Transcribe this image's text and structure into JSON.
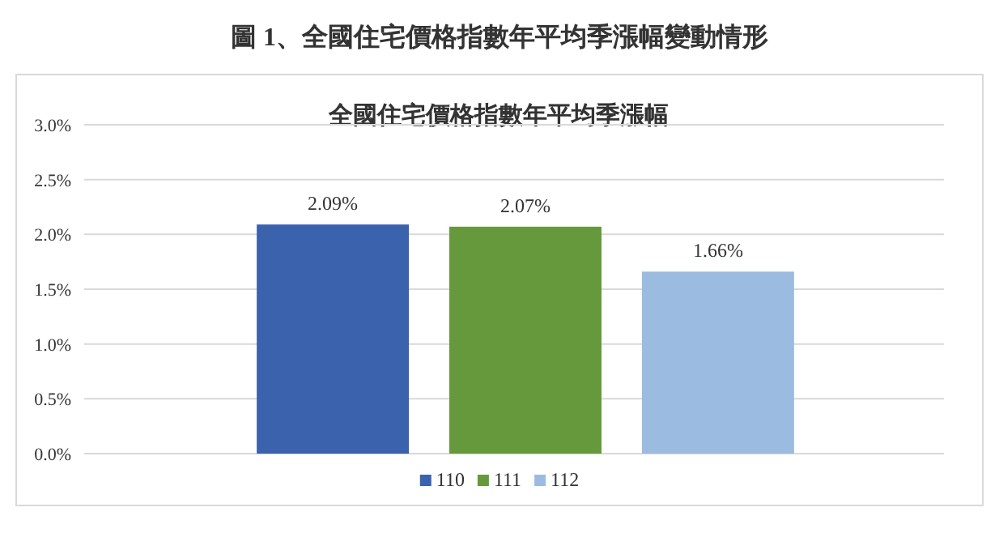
{
  "chart_data": {
    "type": "bar",
    "title": "全國住宅價格指數年平均季漲幅",
    "annotations": [
      "圖 1、全國住宅價格指數年平均季漲幅變動情形"
    ],
    "categories": [
      null
    ],
    "series": [
      {
        "name": "110",
        "color": "#3a62ad",
        "values": [
          2.09
        ],
        "value_labels": [
          "2.09%"
        ]
      },
      {
        "name": "111",
        "color": "#66993c",
        "values": [
          2.07
        ],
        "value_labels": [
          "2.07%"
        ]
      },
      {
        "name": "112",
        "color": "#9bbbe0",
        "values": [
          1.66
        ],
        "value_labels": [
          "1.66%"
        ]
      }
    ],
    "ylim": [
      0,
      3
    ],
    "yticks": [
      {
        "value": 0,
        "label": "0.0%"
      },
      {
        "value": 0.5,
        "label": "0.5%"
      },
      {
        "value": 1,
        "label": "1.0%"
      },
      {
        "value": 1.5,
        "label": "1.5%"
      },
      {
        "value": 2,
        "label": "2.0%"
      },
      {
        "value": 2.5,
        "label": "2.5%"
      },
      {
        "value": 3,
        "label": "3.0%"
      }
    ],
    "grid": "y",
    "legend": "bottom"
  }
}
